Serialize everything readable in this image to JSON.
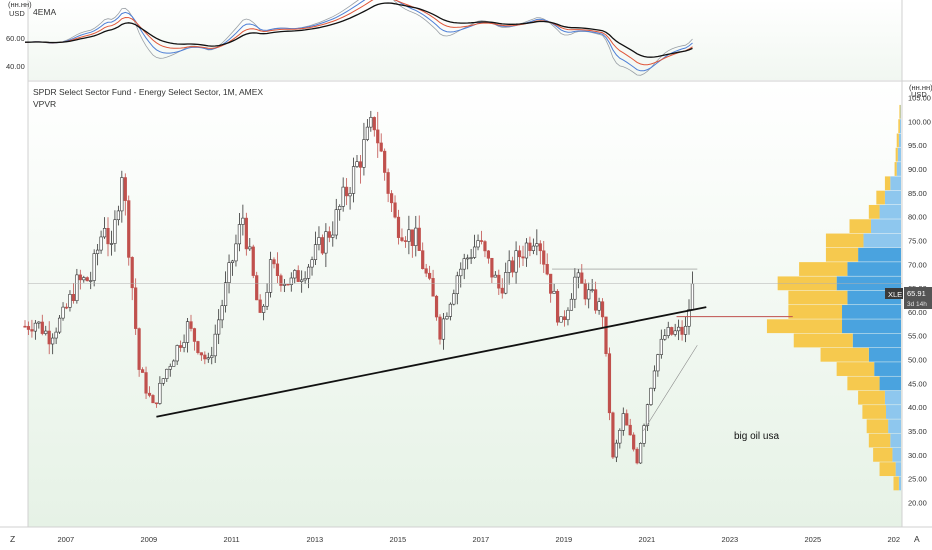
{
  "header": {
    "title": "SPDR Select Sector Fund - Energy Select Sector, 1M, AMEX",
    "indicator": "VPVR",
    "upper_indicator": "4EMA",
    "upper_unit_top": "(нн.нн)",
    "upper_unit": "USD",
    "main_unit_top": "(нн.нн)",
    "main_unit": "USD"
  },
  "badges": {
    "ticker": "XLE",
    "price": "65.91",
    "countdown": "3d 14h"
  },
  "annotation": "big oil usa",
  "corner_left": "Z",
  "corner_right": "A",
  "colors": {
    "up_candle_body": "#ffffff",
    "up_candle_border": "#333333",
    "down_candle": "#c0504d",
    "volume_up": "#f6c94e",
    "volume_down_dark": "#4aa3df",
    "volume_down_light": "#8ec7ee",
    "ema_blue": "#4e7fd6",
    "ema_red": "#e0573a",
    "ema_gray": "#9aa0a6",
    "ema_black": "#111111",
    "trendline": "#111111",
    "price_line": "#b0b0b0",
    "poc_line": "#c0504d",
    "background_top": "#ffffff",
    "background_bottom": "#eaf3ea"
  },
  "chart_data": {
    "type": "candlestick",
    "title": "SPDR Select Sector Fund - Energy Select Sector, 1M, AMEX",
    "x_ticks": [
      "2007",
      "2009",
      "2011",
      "2013",
      "2015",
      "2017",
      "2019",
      "2021",
      "2023",
      "2025",
      "202"
    ],
    "y_ticks": [
      "20.00",
      "25.00",
      "30.00",
      "35.00",
      "40.00",
      "45.00",
      "50.00",
      "55.00",
      "60.00",
      "65.00",
      "70.00",
      "75.00",
      "80.00",
      "85.00",
      "90.00",
      "95.00",
      "100.00",
      "105.00"
    ],
    "ylim": [
      18,
      107
    ],
    "upper_y_ticks": [
      "40.00",
      "60.00"
    ],
    "upper_ylim": [
      30,
      80
    ],
    "last_price": 65.91,
    "candles_monthly_close": [
      {
        "date": "2006-01",
        "close": 57
      },
      {
        "date": "2006-04",
        "close": 58
      },
      {
        "date": "2006-08",
        "close": 55
      },
      {
        "date": "2006-12",
        "close": 59
      },
      {
        "date": "2007-04",
        "close": 66
      },
      {
        "date": "2007-08",
        "close": 67
      },
      {
        "date": "2007-12",
        "close": 79
      },
      {
        "date": "2008-02",
        "close": 72
      },
      {
        "date": "2008-05",
        "close": 90
      },
      {
        "date": "2008-07",
        "close": 74
      },
      {
        "date": "2008-10",
        "close": 48
      },
      {
        "date": "2009-02",
        "close": 40
      },
      {
        "date": "2009-06",
        "close": 48
      },
      {
        "date": "2009-12",
        "close": 57
      },
      {
        "date": "2010-06",
        "close": 49
      },
      {
        "date": "2010-12",
        "close": 68
      },
      {
        "date": "2011-04",
        "close": 80
      },
      {
        "date": "2011-09",
        "close": 58
      },
      {
        "date": "2011-12",
        "close": 69
      },
      {
        "date": "2012-06",
        "close": 66
      },
      {
        "date": "2012-12",
        "close": 71
      },
      {
        "date": "2013-06",
        "close": 78
      },
      {
        "date": "2013-12",
        "close": 89
      },
      {
        "date": "2014-06",
        "close": 100
      },
      {
        "date": "2014-12",
        "close": 79
      },
      {
        "date": "2015-06",
        "close": 75
      },
      {
        "date": "2015-12",
        "close": 60
      },
      {
        "date": "2016-01",
        "close": 56
      },
      {
        "date": "2016-06",
        "close": 68
      },
      {
        "date": "2016-12",
        "close": 75
      },
      {
        "date": "2017-06",
        "close": 65
      },
      {
        "date": "2017-12",
        "close": 72
      },
      {
        "date": "2018-05",
        "close": 77
      },
      {
        "date": "2018-12",
        "close": 57
      },
      {
        "date": "2019-04",
        "close": 67
      },
      {
        "date": "2019-12",
        "close": 60
      },
      {
        "date": "2020-03",
        "close": 29
      },
      {
        "date": "2020-06",
        "close": 38
      },
      {
        "date": "2020-10",
        "close": 29
      },
      {
        "date": "2021-03",
        "close": 49
      },
      {
        "date": "2021-06",
        "close": 55
      },
      {
        "date": "2021-12",
        "close": 56
      },
      {
        "date": "2022-02",
        "close": 65.91
      }
    ],
    "trendline": [
      {
        "date": "2009-03",
        "value": 38
      },
      {
        "date": "2022-06",
        "value": 61
      }
    ],
    "volume_profile_rows": [
      {
        "price": 24,
        "up": 0.05,
        "down": 0.02
      },
      {
        "price": 27,
        "up": 0.15,
        "down": 0.05
      },
      {
        "price": 30,
        "up": 0.18,
        "down": 0.08
      },
      {
        "price": 33,
        "up": 0.2,
        "down": 0.1
      },
      {
        "price": 36,
        "up": 0.2,
        "down": 0.12
      },
      {
        "price": 39,
        "up": 0.22,
        "down": 0.14
      },
      {
        "price": 42,
        "up": 0.25,
        "down": 0.15
      },
      {
        "price": 45,
        "up": 0.3,
        "down": 0.2
      },
      {
        "price": 48,
        "up": 0.35,
        "down": 0.25
      },
      {
        "price": 51,
        "up": 0.45,
        "down": 0.3
      },
      {
        "price": 54,
        "up": 0.55,
        "down": 0.45
      },
      {
        "price": 57,
        "up": 0.7,
        "down": 0.55
      },
      {
        "price": 60,
        "up": 0.5,
        "down": 0.55
      },
      {
        "price": 63,
        "up": 0.55,
        "down": 0.5
      },
      {
        "price": 66,
        "up": 0.55,
        "down": 0.6
      },
      {
        "price": 69,
        "up": 0.45,
        "down": 0.5
      },
      {
        "price": 72,
        "up": 0.3,
        "down": 0.4
      },
      {
        "price": 75,
        "up": 0.35,
        "down": 0.35
      },
      {
        "price": 78,
        "up": 0.2,
        "down": 0.28
      },
      {
        "price": 81,
        "up": 0.1,
        "down": 0.2
      },
      {
        "price": 84,
        "up": 0.08,
        "down": 0.15
      },
      {
        "price": 87,
        "up": 0.05,
        "down": 0.1
      },
      {
        "price": 90,
        "up": 0.02,
        "down": 0.04
      },
      {
        "price": 93,
        "up": 0.02,
        "down": 0.03
      },
      {
        "price": 96,
        "up": 0.02,
        "down": 0.02
      },
      {
        "price": 99,
        "up": 0.015,
        "down": 0.01
      },
      {
        "price": 102,
        "up": 0.01,
        "down": 0.005
      }
    ]
  }
}
